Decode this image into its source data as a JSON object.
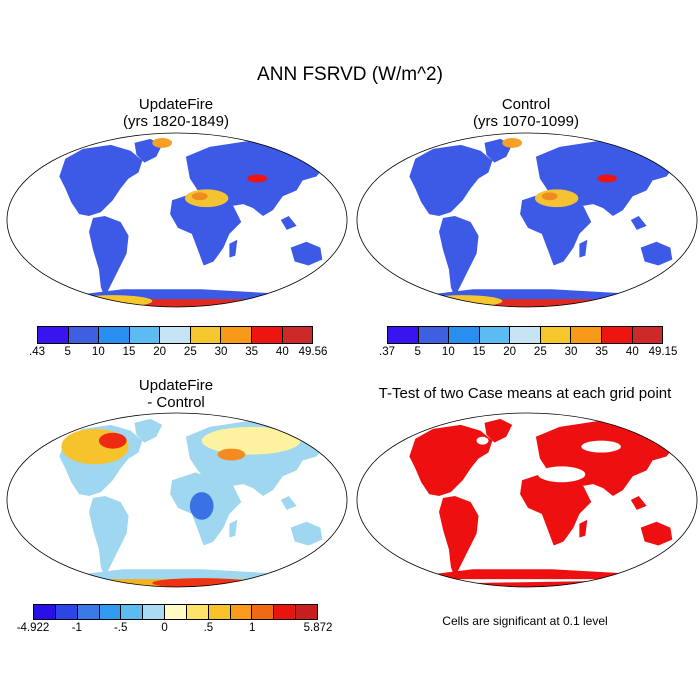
{
  "title": "ANN FSRVD (W/m^2)",
  "panels": [
    {
      "title_line1": "UpdateFire",
      "title_line2": "(yrs 1820-1849)"
    },
    {
      "title_line1": "Control",
      "title_line2": "(yrs 1070-1099)"
    },
    {
      "title_line1": "UpdateFire",
      "title_line2": "- Control"
    },
    {
      "title_line1": "T-Test of two Case means at each grid point",
      "title_line2": ""
    }
  ],
  "colorbars": {
    "case1": {
      "colors": [
        "#3a14ef",
        "#3d5fe0",
        "#2a8ef0",
        "#5cbbf0",
        "#c6e4f4",
        "#f6c62e",
        "#f79a1a",
        "#ee1410",
        "#cc2a2a"
      ],
      "labels": [
        ".43",
        "5",
        "10",
        "15",
        "20",
        "25",
        "30",
        "35",
        "40",
        "49.56"
      ]
    },
    "case2": {
      "colors": [
        "#3a14ef",
        "#3d5fe0",
        "#2a8ef0",
        "#5cbbf0",
        "#c6e4f4",
        "#f6c62e",
        "#f79a1a",
        "#ee1410",
        "#cc2a2a"
      ],
      "labels": [
        ".37",
        "5",
        "10",
        "15",
        "20",
        "25",
        "30",
        "35",
        "40",
        "49.15"
      ]
    },
    "diff": {
      "colors": [
        "#2a10e8",
        "#2c45e6",
        "#3a7ae8",
        "#2f9af0",
        "#5cbcf2",
        "#a9dcf2",
        "#fffbc4",
        "#fde36a",
        "#f9c12a",
        "#f99a1c",
        "#f06a14",
        "#e8140e",
        "#c81e1e"
      ],
      "labels": [
        "-4.922",
        "-1",
        "-.5",
        "0",
        ".5",
        "1",
        "5.872"
      ],
      "label_positions": [
        0,
        2,
        4,
        6,
        8,
        10,
        13
      ]
    }
  },
  "footnote": "Cells are significant at 0.1 level",
  "colors": {
    "ocean": "#ffffff",
    "significant": "#ee1010",
    "land_low": "#3a5ae0"
  }
}
